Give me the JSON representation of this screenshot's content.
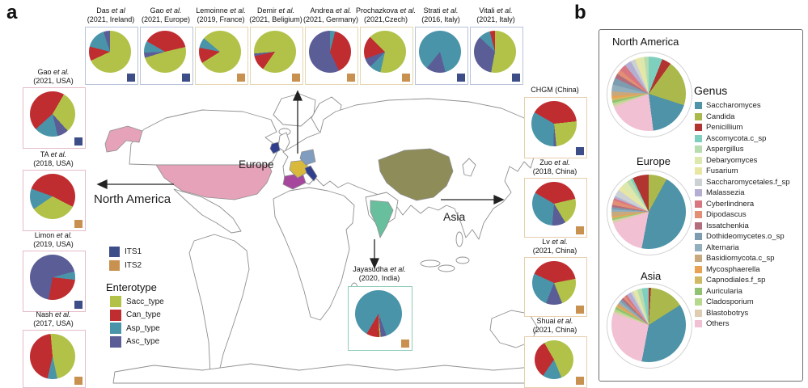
{
  "figure": {
    "panel_a_label": "a",
    "panel_b_label": "b"
  },
  "map_labels": {
    "north_america": "North America",
    "europe": "Europe",
    "asia": "Asia"
  },
  "map_country_colors": {
    "usa": "#e5a2b8",
    "spain": "#a6479d",
    "france": "#d9b93b",
    "germany": "#809cbe",
    "italy": "#2f3f8e",
    "ireland": "#2f3f8e",
    "china": "#8e8c59",
    "india": "#68bf9d"
  },
  "legends": {
    "its": {
      "items": [
        {
          "label": "ITS1",
          "color": "#3c4d88"
        },
        {
          "label": "ITS2",
          "color": "#c9914f"
        }
      ]
    },
    "enterotype": {
      "title": "Enterotype",
      "items": [
        {
          "label": "Sacc_type",
          "color": "#b2c248"
        },
        {
          "label": "Can_type",
          "color": "#c02d31"
        },
        {
          "label": "Asp_type",
          "color": "#4a94a9"
        },
        {
          "label": "Asc_type",
          "color": "#5b5d96"
        }
      ]
    },
    "genus": {
      "title": "Genus",
      "items": [
        {
          "label": "Saccharomyces",
          "color": "#4e93a8"
        },
        {
          "label": "Candida",
          "color": "#abb84c"
        },
        {
          "label": "Penicillium",
          "color": "#b13431"
        },
        {
          "label": "Ascomycota.c_sp",
          "color": "#7fcfbe"
        },
        {
          "label": "Aspergillus",
          "color": "#b8dcb0"
        },
        {
          "label": "Debaryomyces",
          "color": "#dce8ad"
        },
        {
          "label": "Fusarium",
          "color": "#e9e6a4"
        },
        {
          "label": "Saccharomycetales.f_sp",
          "color": "#ccd1d4"
        },
        {
          "label": "Malassezia",
          "color": "#b4afd2"
        },
        {
          "label": "Cyberlindnera",
          "color": "#d97781"
        },
        {
          "label": "Dipodascus",
          "color": "#e38f75"
        },
        {
          "label": "Issatchenkia",
          "color": "#b26e7c"
        },
        {
          "label": "Dothideomycetes.o_sp",
          "color": "#7d9cb0"
        },
        {
          "label": "Alternaria",
          "color": "#93aebc"
        },
        {
          "label": "Basidiomycota.c_sp",
          "color": "#c8a87d"
        },
        {
          "label": "Mycosphaerella",
          "color": "#e9a254"
        },
        {
          "label": "Capnodiales.f_sp",
          "color": "#cfb964"
        },
        {
          "label": "Auricularia",
          "color": "#90c271"
        },
        {
          "label": "Cladosporium",
          "color": "#b7d98e"
        },
        {
          "label": "Blastobotrys",
          "color": "#decdb0"
        },
        {
          "label": "Others",
          "color": "#f1c0d3"
        }
      ]
    }
  },
  "chart_data": [
    {
      "type": "pie",
      "group": "top",
      "index": 0,
      "name": "Das",
      "etal": "et al",
      "detail": "(2021, Ireland)",
      "marker": "ITS1",
      "border": "#b7c3da",
      "rotate": 0,
      "slices": [
        [
          "Sacc_type",
          68
        ],
        [
          "Can_type",
          11
        ],
        [
          "Asp_type",
          16
        ],
        [
          "Asc_type",
          5
        ]
      ]
    },
    {
      "type": "pie",
      "group": "top",
      "index": 1,
      "name": "Gao",
      "etal": "et al.",
      "detail": "(2021, Europe)",
      "marker": "ITS1",
      "border": "#b7c3da",
      "rotate": 300,
      "slices": [
        [
          "Can_type",
          38
        ],
        [
          "Sacc_type",
          49
        ],
        [
          "Asc_type",
          4
        ],
        [
          "Asp_type",
          9
        ]
      ]
    },
    {
      "type": "pie",
      "group": "top",
      "index": 2,
      "name": "Lemoinne",
      "etal": "et al.",
      "detail": "(2019, France)",
      "marker": "ITS2",
      "border": "#e4d6b0",
      "rotate": 310,
      "slices": [
        [
          "Sacc_type",
          80
        ],
        [
          "Can_type",
          12
        ],
        [
          "Asp_type",
          8
        ]
      ]
    },
    {
      "type": "pie",
      "group": "top",
      "index": 3,
      "name": "Demir",
      "etal": "et al.",
      "detail": "(2021, Beligium)",
      "marker": "ITS2",
      "border": "#e4d6b0",
      "rotate": 265,
      "slices": [
        [
          "Sacc_type",
          86
        ],
        [
          "Can_type",
          12
        ],
        [
          "Asc_type",
          2
        ]
      ]
    },
    {
      "type": "pie",
      "group": "top",
      "index": 4,
      "name": "Andrea",
      "etal": "et al.",
      "detail": "(2021, Germany)",
      "marker": "ITS2",
      "border": "#e4d6b0",
      "rotate": 0,
      "slices": [
        [
          "Asp_type",
          4
        ],
        [
          "Can_type",
          39
        ],
        [
          "Asc_type",
          57
        ]
      ]
    },
    {
      "type": "pie",
      "group": "top",
      "index": 5,
      "name": "Prochazkova",
      "etal": "et al.",
      "detail": "(2021,Czech)",
      "marker": "ITS2",
      "border": "#e4d6b0",
      "rotate": 315,
      "slices": [
        [
          "Sacc_type",
          66
        ],
        [
          "Asp_type",
          9
        ],
        [
          "Asc_type",
          7
        ],
        [
          "Can_type",
          18
        ]
      ]
    },
    {
      "type": "pie",
      "group": "top",
      "index": 6,
      "name": "Strati",
      "etal": "et al.",
      "detail": "(2016, Italy)",
      "marker": "ITS1",
      "border": "#b7c3da",
      "rotate": 165,
      "slices": [
        [
          "Asc_type",
          15
        ],
        [
          "Asp_type",
          85
        ]
      ]
    },
    {
      "type": "pie",
      "group": "top",
      "index": 7,
      "name": "Vitali",
      "etal": "et al.",
      "detail": "(2021, Italy)",
      "marker": "ITS1",
      "border": "#b7c3da",
      "rotate": 0,
      "slices": [
        [
          "Sacc_type",
          53
        ],
        [
          "Asc_type",
          34
        ],
        [
          "Asp_type",
          9
        ],
        [
          "Can_type",
          4
        ]
      ]
    },
    {
      "type": "pie",
      "group": "left",
      "index": 0,
      "name": "Gao",
      "etal": "et al.",
      "detail": "(2021, USA)",
      "marker": "ITS1",
      "border": "#e5bcc8",
      "rotate": 30,
      "slices": [
        [
          "Sacc_type",
          30
        ],
        [
          "Asc_type",
          8
        ],
        [
          "Asp_type",
          17
        ],
        [
          "Can_type",
          45
        ]
      ]
    },
    {
      "type": "pie",
      "group": "left",
      "index": 1,
      "name": "TA",
      "etal": "et al.",
      "detail": "(2018, USA)",
      "marker": "ITS2",
      "border": "#e5bcc8",
      "rotate": 290,
      "slices": [
        [
          "Can_type",
          52
        ],
        [
          "Sacc_type",
          33
        ],
        [
          "Asp_type",
          15
        ]
      ]
    },
    {
      "type": "pie",
      "group": "left",
      "index": 2,
      "name": "Limon",
      "etal": "et al.",
      "detail": "(2019, USA)",
      "marker": "ITS1",
      "border": "#e5bcc8",
      "rotate": 75,
      "slices": [
        [
          "Asp_type",
          6
        ],
        [
          "Can_type",
          26
        ],
        [
          "Asc_type",
          68
        ]
      ]
    },
    {
      "type": "pie",
      "group": "left",
      "index": 3,
      "name": "Nash",
      "etal": "et al.",
      "detail": "(2017, USA)",
      "marker": "ITS2",
      "border": "#e5bcc8",
      "rotate": 355,
      "slices": [
        [
          "Sacc_type",
          48
        ],
        [
          "Asp_type",
          7
        ],
        [
          "Can_type",
          45
        ]
      ]
    },
    {
      "type": "pie",
      "group": "right",
      "index": 0,
      "name": "CHGM (China)",
      "etal": "",
      "detail": "",
      "marker": "ITS1",
      "border": "#e8cfae",
      "rotate": 300,
      "slices": [
        [
          "Can_type",
          40
        ],
        [
          "Sacc_type",
          25
        ],
        [
          "Asc_type",
          2
        ],
        [
          "Asp_type",
          33
        ]
      ]
    },
    {
      "type": "pie",
      "group": "right",
      "index": 1,
      "name": "Zuo",
      "etal": "et al.",
      "detail": "(2018, China)",
      "marker": "ITS2",
      "border": "#e8cfae",
      "rotate": 300,
      "slices": [
        [
          "Can_type",
          38
        ],
        [
          "Sacc_type",
          20
        ],
        [
          "Asc_type",
          10
        ],
        [
          "Asp_type",
          32
        ]
      ]
    },
    {
      "type": "pie",
      "group": "right",
      "index": 2,
      "name": "Lv",
      "etal": "et al.",
      "detail": "(2021, China)",
      "marker": "ITS2",
      "border": "#e8cfae",
      "rotate": 295,
      "slices": [
        [
          "Can_type",
          40
        ],
        [
          "Sacc_type",
          22
        ],
        [
          "Asc_type",
          12
        ],
        [
          "Asp_type",
          26
        ]
      ]
    },
    {
      "type": "pie",
      "group": "right",
      "index": 3,
      "name": "Shuai",
      "etal": "et al.",
      "detail": "(2021, China)",
      "marker": "ITS2",
      "border": "#e8cfae",
      "rotate": 330,
      "slices": [
        [
          "Sacc_type",
          52
        ],
        [
          "Asp_type",
          16
        ],
        [
          "Can_type",
          32
        ]
      ]
    },
    {
      "type": "pie",
      "group": "india",
      "index": 0,
      "name": "Jayasudha",
      "etal": "et al.",
      "detail": "(2020, India)",
      "marker": "ITS2",
      "border": "#8fccba",
      "rotate": 160,
      "slices": [
        [
          "Asc_type",
          4
        ],
        [
          "Sacc_type",
          1
        ],
        [
          "Can_type",
          9
        ],
        [
          "Asp_type",
          86
        ]
      ]
    },
    {
      "type": "pie",
      "group": "region",
      "index": 0,
      "title": "North America",
      "rotate": 0,
      "slices": [
        [
          "Ascomycota.c_sp",
          6
        ],
        [
          "Penicillium",
          4
        ],
        [
          "Candida",
          20
        ],
        [
          "Saccharomyces",
          18
        ],
        [
          "Others",
          21
        ],
        [
          "Blastobotrys",
          1
        ],
        [
          "Cladosporium",
          1
        ],
        [
          "Auricularia",
          1
        ],
        [
          "Capnodiales.f_sp",
          1
        ],
        [
          "Mycosphaerella",
          1
        ],
        [
          "Basidiomycota.c_sp",
          2
        ],
        [
          "Alternaria",
          3
        ],
        [
          "Dothideomycetes.o_sp",
          3
        ],
        [
          "Issatchenkia",
          2
        ],
        [
          "Dipodascus",
          2
        ],
        [
          "Cyberlindnera",
          3
        ],
        [
          "Malassezia",
          3
        ],
        [
          "Saccharomycetales.f_sp",
          2
        ],
        [
          "Fusarium",
          2
        ],
        [
          "Debaryomyces",
          2
        ],
        [
          "Aspergillus",
          2
        ]
      ]
    },
    {
      "type": "pie",
      "group": "region",
      "index": 1,
      "title": "Europe",
      "rotate": 0,
      "slices": [
        [
          "Candida",
          8
        ],
        [
          "Saccharomyces",
          45
        ],
        [
          "Others",
          17
        ],
        [
          "Blastobotrys",
          1
        ],
        [
          "Cladosporium",
          0.5
        ],
        [
          "Auricularia",
          0.5
        ],
        [
          "Capnodiales.f_sp",
          0.5
        ],
        [
          "Mycosphaerella",
          0.5
        ],
        [
          "Basidiomycota.c_sp",
          2
        ],
        [
          "Alternaria",
          1
        ],
        [
          "Dothideomycetes.o_sp",
          1
        ],
        [
          "Issatchenkia",
          1
        ],
        [
          "Dipodascus",
          2
        ],
        [
          "Cyberlindnera",
          1
        ],
        [
          "Malassezia",
          1
        ],
        [
          "Saccharomycetales.f_sp",
          3
        ],
        [
          "Fusarium",
          2
        ],
        [
          "Debaryomyces",
          3
        ],
        [
          "Aspergillus",
          2
        ],
        [
          "Ascomycota.c_sp",
          1
        ],
        [
          "Penicillium",
          7
        ]
      ]
    },
    {
      "type": "pie",
      "group": "region",
      "index": 2,
      "title": "Asia",
      "rotate": 0,
      "slices": [
        [
          "Penicillium",
          1
        ],
        [
          "Candida",
          15
        ],
        [
          "Saccharomyces",
          37
        ],
        [
          "Others",
          27
        ],
        [
          "Blastobotrys",
          1
        ],
        [
          "Cladosporium",
          1
        ],
        [
          "Auricularia",
          1
        ],
        [
          "Capnodiales.f_sp",
          0.5
        ],
        [
          "Mycosphaerella",
          0.5
        ],
        [
          "Basidiomycota.c_sp",
          1
        ],
        [
          "Alternaria",
          1
        ],
        [
          "Dothideomycetes.o_sp",
          1
        ],
        [
          "Issatchenkia",
          1
        ],
        [
          "Dipodascus",
          1
        ],
        [
          "Cyberlindnera",
          1
        ],
        [
          "Malassezia",
          2
        ],
        [
          "Saccharomycetales.f_sp",
          1
        ],
        [
          "Fusarium",
          1
        ],
        [
          "Debaryomyces",
          1
        ],
        [
          "Aspergillus",
          2
        ],
        [
          "Ascomycota.c_sp",
          3
        ]
      ]
    }
  ]
}
